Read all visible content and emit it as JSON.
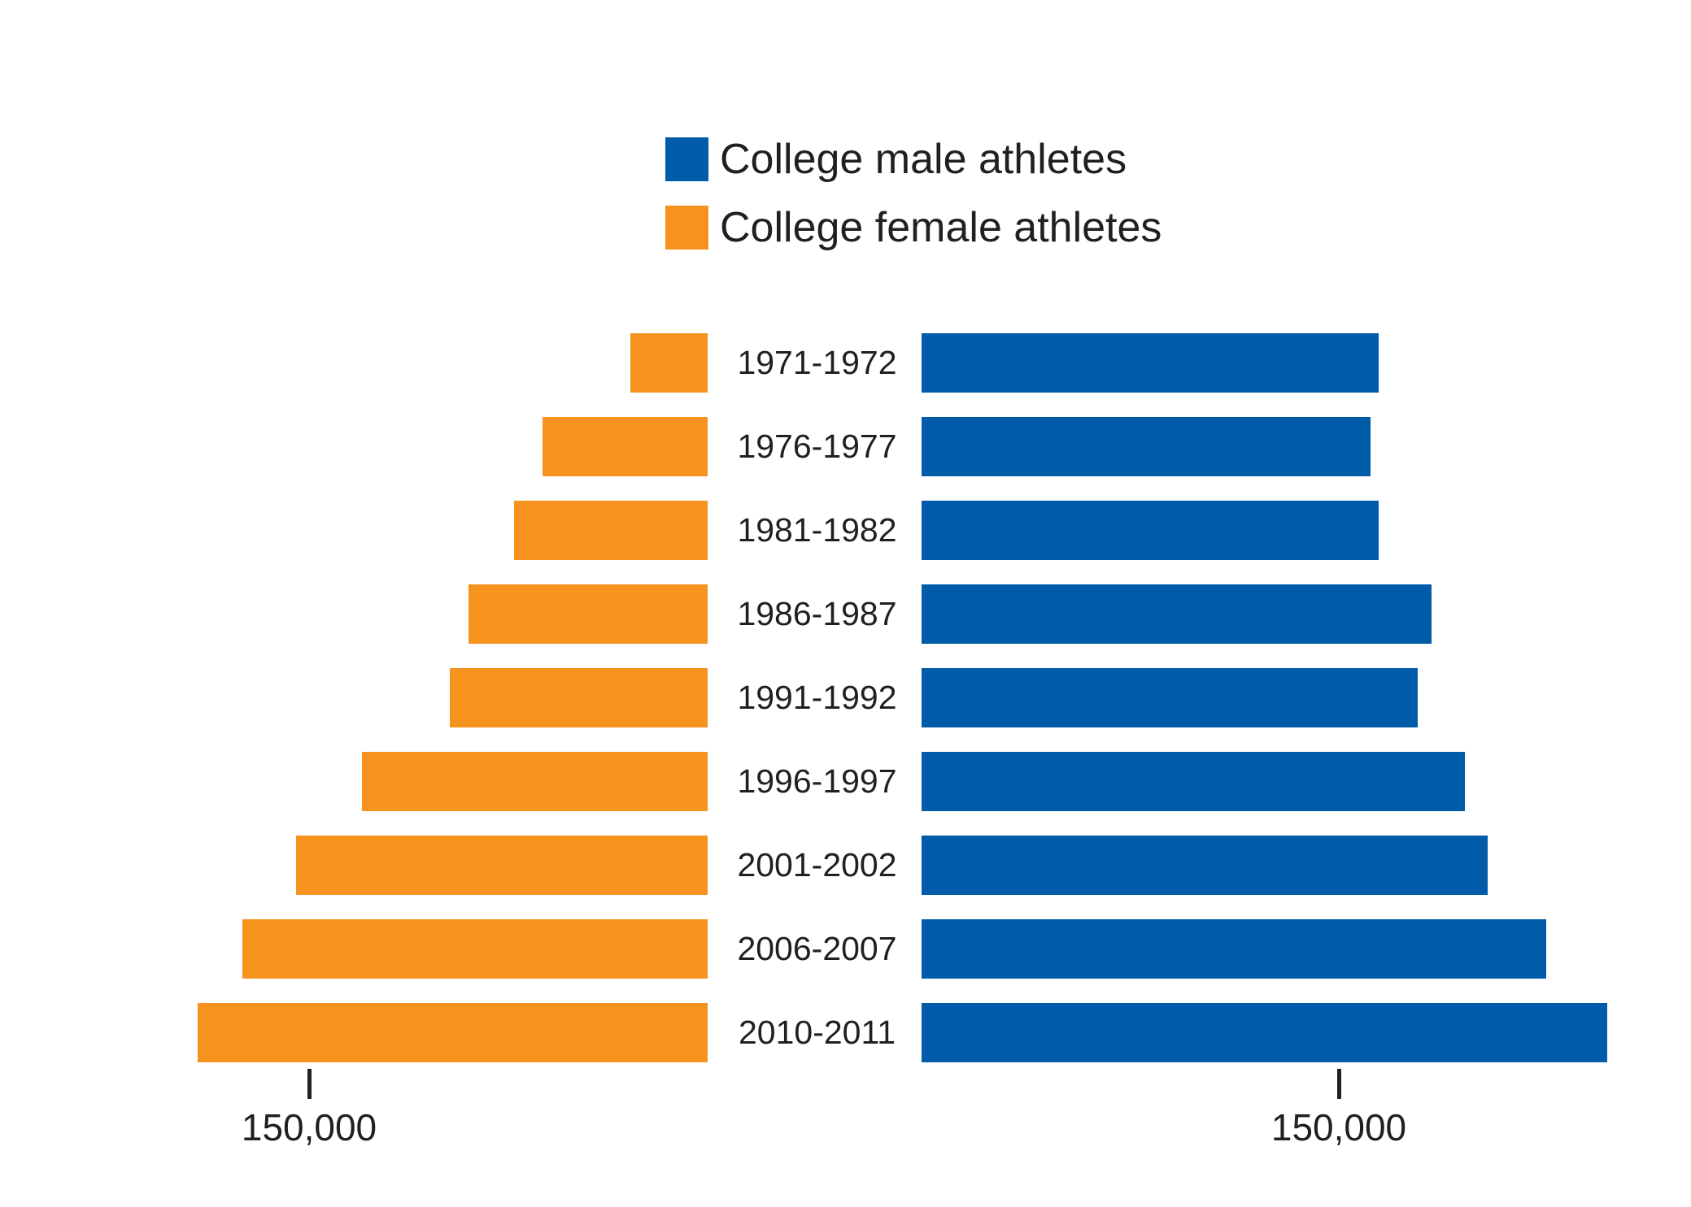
{
  "chart_data": {
    "type": "bar",
    "variant": "population-pyramid",
    "title": "",
    "categories": [
      "1971-1972",
      "1976-1977",
      "1981-1982",
      "1986-1987",
      "1991-1992",
      "1996-1997",
      "2001-2002",
      "2006-2007",
      "2010-2011"
    ],
    "series": [
      {
        "name": "College male athletes",
        "side": "right",
        "color": "#005CA9",
        "values": [
          164000,
          161000,
          164000,
          183000,
          178000,
          195000,
          203000,
          224000,
          246000
        ]
      },
      {
        "name": "College female athletes",
        "side": "left",
        "color": "#F6921E",
        "values": [
          29000,
          62000,
          73000,
          90000,
          97000,
          130000,
          155000,
          175000,
          192000
        ]
      }
    ],
    "axis": {
      "tick_value": 150000,
      "left_tick_label": "150,000",
      "right_tick_label": "150,000"
    },
    "grid": false,
    "legend_position": "top-center"
  },
  "legend": {
    "items": [
      {
        "label": "College male athletes",
        "color": "#005CA9"
      },
      {
        "label": "College female athletes",
        "color": "#F6921E"
      }
    ]
  },
  "colors": {
    "male": "#005CA9",
    "female": "#F6921E",
    "text": "#231F20",
    "background": "#FFFFFF"
  }
}
